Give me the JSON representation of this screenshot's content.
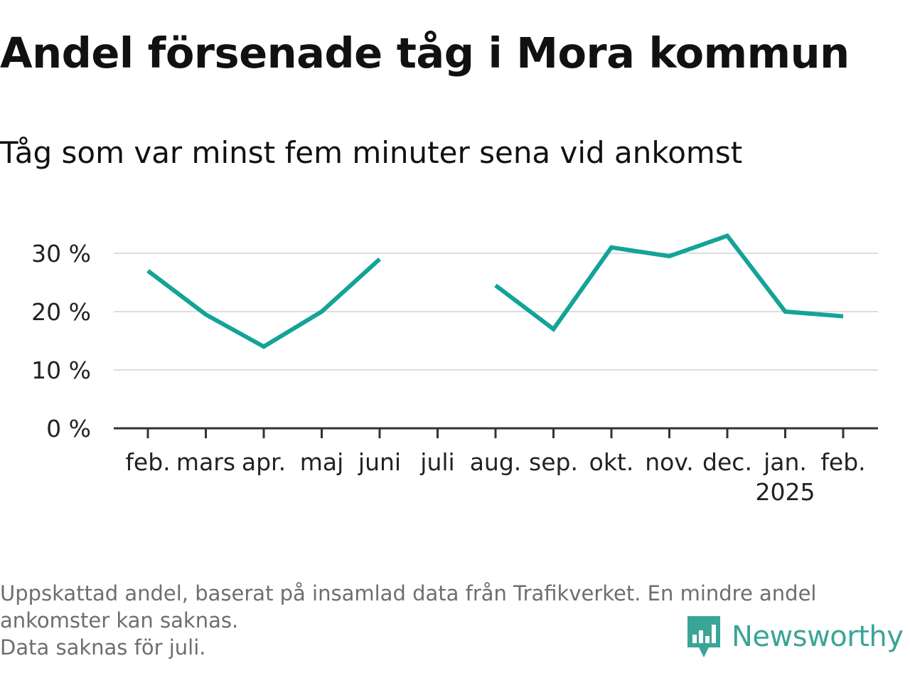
{
  "header": {
    "title": "Andel försenade tåg i Mora kommun",
    "subtitle": "Tåg som var minst fem minuter sena vid ankomst"
  },
  "chart_data": {
    "type": "line",
    "categories": [
      "feb.",
      "mars",
      "apr.",
      "maj",
      "juni",
      "juli",
      "aug.",
      "sep.",
      "okt.",
      "nov.",
      "dec.",
      "jan.",
      "feb."
    ],
    "year_label": {
      "category_index": 11,
      "text": "2025"
    },
    "series": [
      {
        "values": [
          27,
          19.5,
          14,
          20,
          29,
          null,
          24.5,
          17,
          31,
          29.5,
          33,
          20,
          19.2
        ]
      }
    ],
    "ylim": [
      0,
      33
    ],
    "yticks": [
      0,
      10,
      20,
      30
    ],
    "ytick_labels": [
      "0 %",
      "10 %",
      "20 %",
      "30 %"
    ],
    "grid": true,
    "line_color": "#14a398",
    "grid_color": "#dddddd",
    "axis_color": "#333333"
  },
  "footnote": {
    "lines": [
      "Uppskattad andel, baserat på insamlad data från Trafikverket. En mindre andel",
      "ankomster kan saknas.",
      "Data saknas för juli."
    ]
  },
  "logo": {
    "text": "Newsworthy",
    "icon": "newsworthy-bar-chart-icon",
    "color": "#3aa597"
  }
}
